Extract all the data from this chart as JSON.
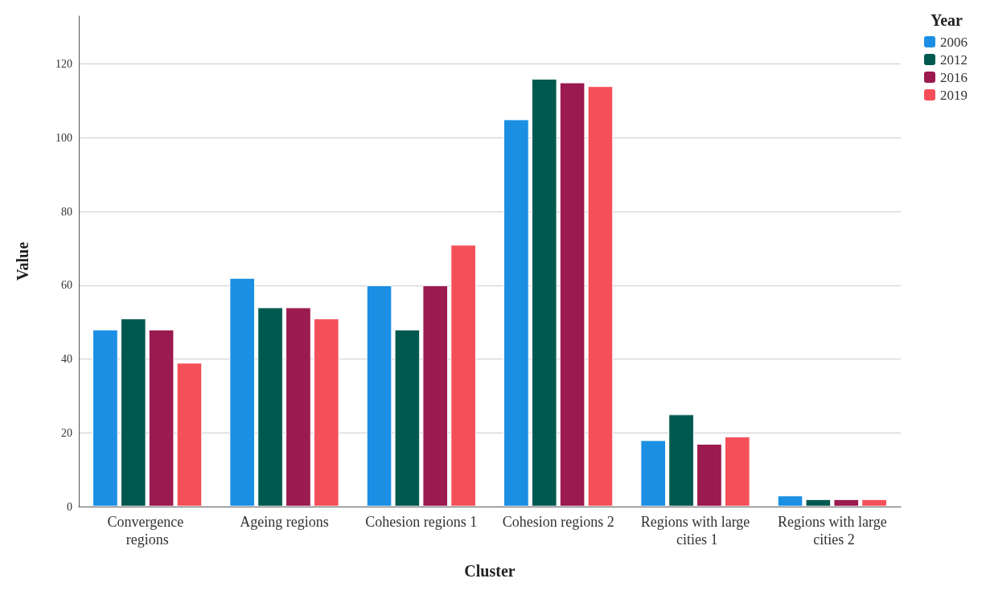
{
  "chart_data": {
    "type": "bar",
    "xlabel": "Cluster",
    "ylabel": "Value",
    "legend_title": "Year",
    "categories": [
      "Convergence regions",
      "Ageing regions",
      "Cohesion regions 1",
      "Cohesion regions 2",
      "Regions with large cities 1",
      "Regions with large cities 2"
    ],
    "series": [
      {
        "name": "2006",
        "color": "#1b8fe3",
        "values": [
          48,
          62,
          60,
          105,
          18,
          3
        ]
      },
      {
        "name": "2012",
        "color": "#00594f",
        "values": [
          51,
          54,
          48,
          116,
          25,
          2
        ]
      },
      {
        "name": "2016",
        "color": "#9b1a4f",
        "values": [
          48,
          54,
          60,
          115,
          17,
          2
        ]
      },
      {
        "name": "2019",
        "color": "#f5505a",
        "values": [
          39,
          51,
          71,
          114,
          19,
          2
        ]
      }
    ],
    "ylim": [
      0,
      133
    ],
    "yticks": [
      0,
      20,
      40,
      60,
      80,
      100,
      120
    ],
    "grid": "y",
    "legend": "top right"
  }
}
